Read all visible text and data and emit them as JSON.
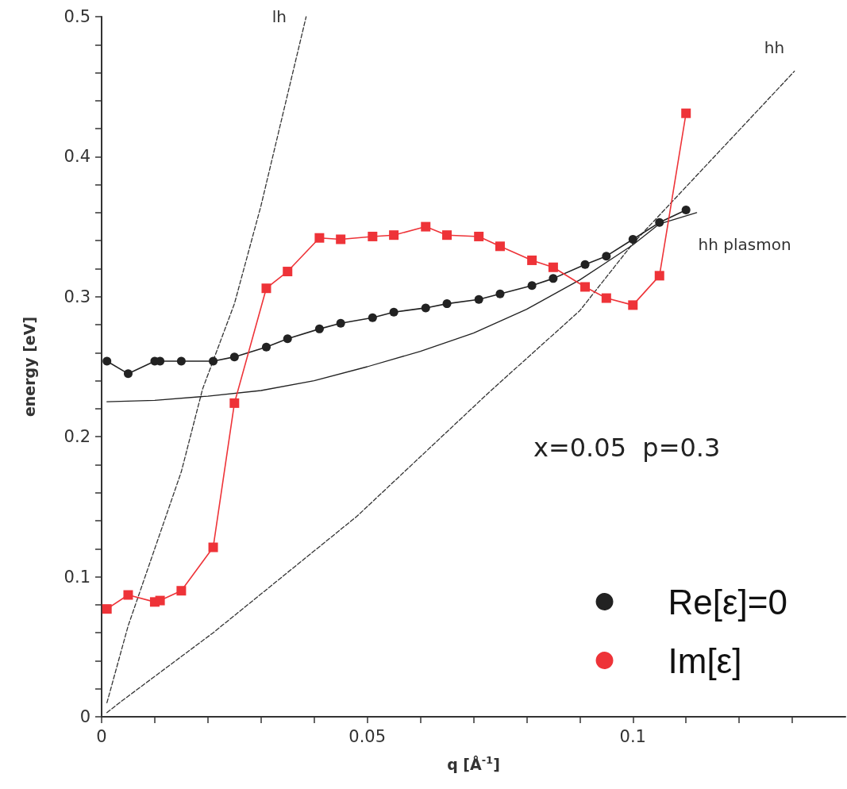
{
  "chart_data": {
    "type": "line",
    "xlabel": "q [Å$^{-1}$]",
    "ylabel": "energy [eV]",
    "xlim": [
      0,
      0.14
    ],
    "ylim": [
      0,
      0.5
    ],
    "xticks": [
      0,
      {
        "value": 0.01,
        "label": null
      },
      {
        "value": 0.02,
        "label": null
      },
      {
        "value": 0.03,
        "label": null
      },
      {
        "value": 0.04,
        "label": null
      },
      0.05,
      {
        "value": 0.06,
        "label": null
      },
      {
        "value": 0.07,
        "label": null
      },
      {
        "value": 0.08,
        "label": null
      },
      {
        "value": 0.09,
        "label": null
      },
      0.1,
      {
        "value": 0.11,
        "label": null
      },
      {
        "value": 0.12,
        "label": null
      },
      {
        "value": 0.13,
        "label": null
      }
    ],
    "yticks": [
      0,
      {
        "value": 0.02,
        "label": null
      },
      {
        "value": 0.04,
        "label": null
      },
      {
        "value": 0.06,
        "label": null
      },
      {
        "value": 0.08,
        "label": null
      },
      0.1,
      {
        "value": 0.12,
        "label": null
      },
      {
        "value": 0.14,
        "label": null
      },
      {
        "value": 0.16,
        "label": null
      },
      {
        "value": 0.18,
        "label": null
      },
      0.2,
      {
        "value": 0.22,
        "label": null
      },
      {
        "value": 0.24,
        "label": null
      },
      {
        "value": 0.26,
        "label": null
      },
      {
        "value": 0.28,
        "label": null
      },
      0.3,
      {
        "value": 0.32,
        "label": null
      },
      {
        "value": 0.34,
        "label": null
      },
      {
        "value": 0.36,
        "label": null
      },
      {
        "value": 0.38,
        "label": null
      },
      0.4,
      {
        "value": 0.42,
        "label": null
      },
      {
        "value": 0.44,
        "label": null
      },
      {
        "value": 0.46,
        "label": null
      },
      {
        "value": 0.48,
        "label": null
      },
      0.5
    ],
    "grid": false,
    "legend": "bottom right",
    "annotations": [
      "x=0.05  p=0.3"
    ],
    "series": [
      {
        "name": "lh",
        "color": "#333333",
        "marker": "none",
        "line_style": "dashed",
        "x": [
          0.001,
          0.005,
          0.01,
          0.015,
          0.019,
          0.025,
          0.03,
          0.0385
        ],
        "values": [
          0.01,
          0.065,
          0.12,
          0.175,
          0.234,
          0.295,
          0.365,
          0.5
        ]
      },
      {
        "name": "hh",
        "color": "#333333",
        "marker": "none",
        "line_style": "dashed",
        "x": [
          0.001,
          0.0037,
          0.021,
          0.048,
          0.073,
          0.09,
          0.1,
          0.1304
        ],
        "values": [
          0.003,
          0.011,
          0.06,
          0.143,
          0.232,
          0.29,
          0.338,
          0.461
        ]
      },
      {
        "name": "hh plasmon",
        "color": "#222222",
        "marker": "none",
        "line_style": "solid",
        "x": [
          0.001,
          0.01,
          0.02,
          0.03,
          0.04,
          0.05,
          0.06,
          0.07,
          0.08,
          0.09,
          0.1,
          0.105,
          0.112
        ],
        "values": [
          0.225,
          0.226,
          0.229,
          0.233,
          0.24,
          0.25,
          0.261,
          0.274,
          0.291,
          0.312,
          0.337,
          0.352,
          0.36
        ]
      },
      {
        "name": "Re[ε]=0",
        "color": "#222222",
        "marker": "circle",
        "line_style": "solid",
        "x": [
          0.001,
          0.005,
          0.01,
          0.011,
          0.015,
          0.021,
          0.025,
          0.031,
          0.035,
          0.041,
          0.045,
          0.051,
          0.055,
          0.061,
          0.065,
          0.071,
          0.075,
          0.081,
          0.085,
          0.091,
          0.095,
          0.1,
          0.105,
          0.11
        ],
        "values": [
          0.254,
          0.245,
          0.254,
          0.254,
          0.254,
          0.254,
          0.257,
          0.264,
          0.27,
          0.277,
          0.281,
          0.285,
          0.289,
          0.292,
          0.295,
          0.298,
          0.302,
          0.308,
          0.313,
          0.323,
          0.329,
          0.341,
          0.353,
          0.362
        ]
      },
      {
        "name": "Im[ε]",
        "color": "#ee3338",
        "marker": "square",
        "line_style": "solid",
        "x": [
          0.001,
          0.005,
          0.01,
          0.011,
          0.015,
          0.021,
          0.025,
          0.031,
          0.035,
          0.041,
          0.045,
          0.051,
          0.055,
          0.061,
          0.065,
          0.071,
          0.075,
          0.081,
          0.085,
          0.091,
          0.095,
          0.1,
          0.105,
          0.11
        ],
        "values": [
          0.077,
          0.087,
          0.082,
          0.083,
          0.09,
          0.121,
          0.224,
          0.306,
          0.318,
          0.342,
          0.341,
          0.343,
          0.344,
          0.35,
          0.344,
          0.343,
          0.336,
          0.326,
          0.321,
          0.307,
          0.299,
          0.294,
          0.315,
          0.431
        ]
      }
    ]
  }
}
